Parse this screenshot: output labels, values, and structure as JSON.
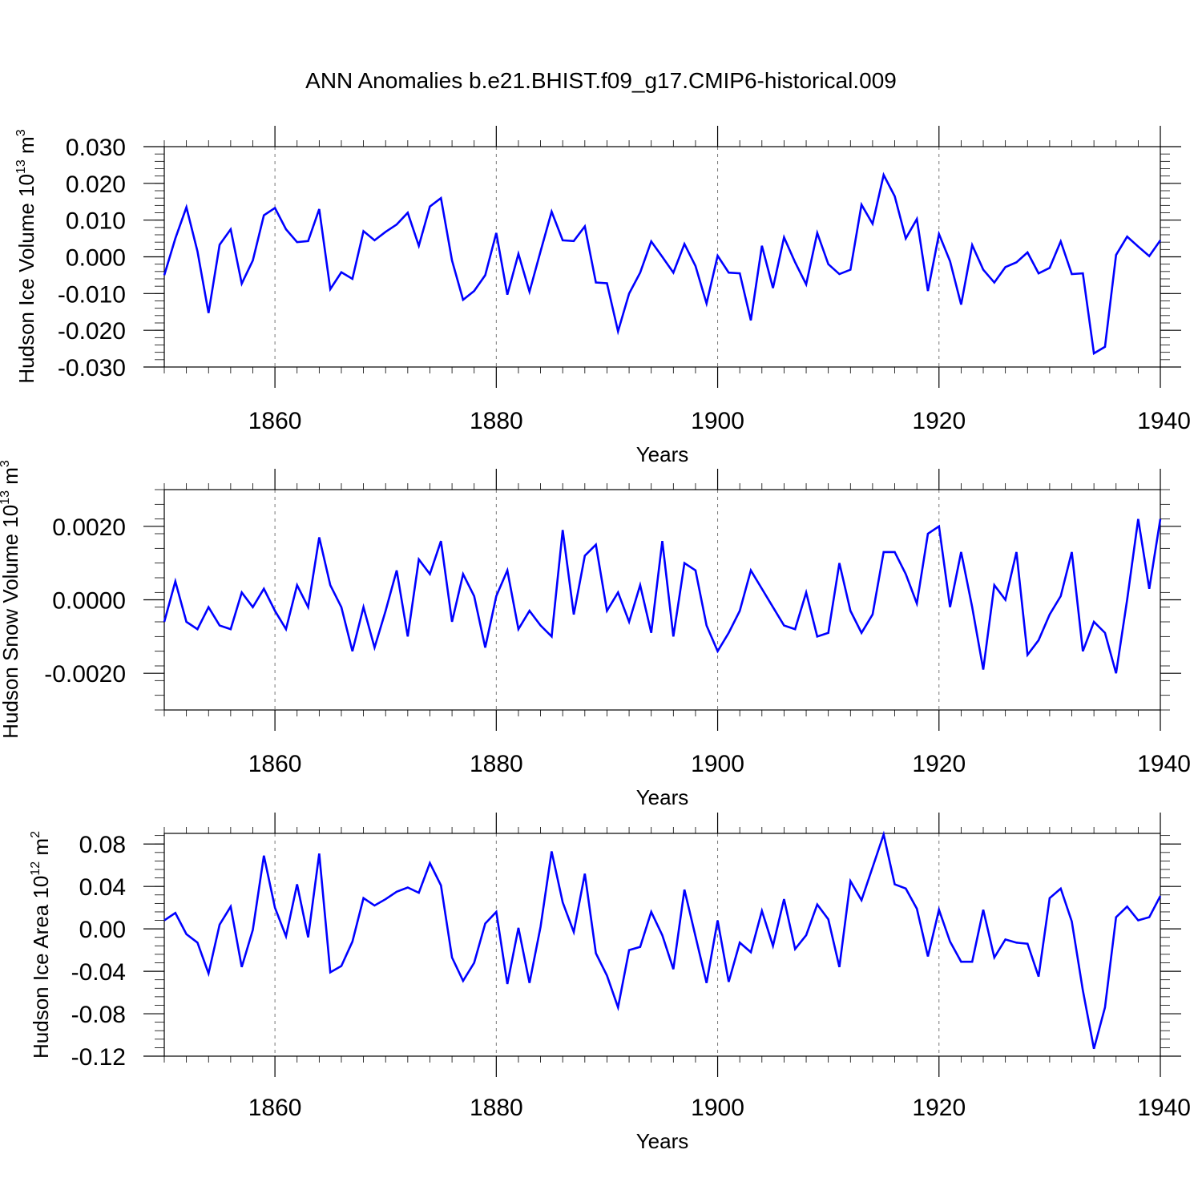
{
  "title": "ANN Anomalies b.e21.BHIST.f09_g17.CMIP6-historical.009",
  "line_color": "#0000ff",
  "chart_data": [
    {
      "type": "line",
      "title": "ANN Anomalies b.e21.BHIST.f09_g17.CMIP6-historical.009",
      "ylabel_main": "Hudson Ice Volume 10",
      "ylabel_exp": "13",
      "ylabel_unit": " m",
      "ylabel_unit_exp": "3",
      "xlabel": "Years",
      "xlim": [
        1850,
        1940
      ],
      "ylim": [
        -0.03,
        0.03
      ],
      "x_ticks": [
        1860,
        1880,
        1900,
        1920,
        1940
      ],
      "x_tick_labels": [
        "1860",
        "1880",
        "1900",
        "1920",
        "1940"
      ],
      "y_ticks": [
        0.03,
        0.02,
        0.01,
        0.0,
        -0.01,
        -0.02,
        -0.03
      ],
      "y_tick_labels": [
        "0.030",
        "0.020",
        "0.010",
        "0.000",
        "-0.010",
        "-0.020",
        "-0.030"
      ],
      "x_start": 1850,
      "series": [
        {
          "name": "Hudson Ice Volume anomaly",
          "values": [
            -0.005,
            0.005,
            0.0135,
            0.0015,
            -0.0153,
            0.0033,
            0.0075,
            -0.0073,
            -0.001,
            0.0113,
            0.0133,
            0.0075,
            0.004,
            0.0043,
            0.013,
            -0.0088,
            -0.0042,
            -0.006,
            0.007,
            0.0045,
            0.0068,
            0.0088,
            0.012,
            0.003,
            0.0137,
            0.016,
            -0.001,
            -0.0117,
            -0.0093,
            -0.005,
            0.0065,
            -0.0103,
            0.0008,
            -0.0095,
            0.0015,
            0.0123,
            0.0045,
            0.0043,
            0.0083,
            -0.007,
            -0.0072,
            -0.0203,
            -0.01,
            -0.0043,
            0.0042,
            0.0,
            -0.0043,
            0.0035,
            -0.0025,
            -0.0127,
            0.0003,
            -0.0043,
            -0.0045,
            -0.0173,
            0.003,
            -0.0085,
            0.0053,
            -0.0015,
            -0.0075,
            0.0065,
            -0.002,
            -0.0047,
            -0.0035,
            0.0142,
            0.009,
            0.0223,
            0.0165,
            0.005,
            0.0103,
            -0.0093,
            0.0062,
            -0.0012,
            -0.013,
            0.0032,
            -0.0035,
            -0.007,
            -0.0028,
            -0.0015,
            0.0012,
            -0.0045,
            -0.003,
            0.0042,
            -0.0047,
            -0.0045,
            -0.0263,
            -0.0245,
            0.0005,
            0.0055,
            0.0028,
            0.0002,
            0.0045
          ]
        }
      ]
    },
    {
      "type": "line",
      "ylabel_main": "Hudson Snow Volume 10",
      "ylabel_exp": "13",
      "ylabel_unit": " m",
      "ylabel_unit_exp": "3",
      "xlabel": "Years",
      "xlim": [
        1850,
        1940
      ],
      "ylim": [
        -0.003,
        0.003
      ],
      "x_ticks": [
        1860,
        1880,
        1900,
        1920,
        1940
      ],
      "x_tick_labels": [
        "1860",
        "1880",
        "1900",
        "1920",
        "1940"
      ],
      "y_ticks": [
        0.002,
        0.0,
        -0.002
      ],
      "y_tick_labels": [
        "0.0020",
        "0.0000",
        "-0.0020"
      ],
      "x_start": 1850,
      "series": [
        {
          "name": "Hudson Snow Volume anomaly",
          "values": [
            -0.0006,
            0.0005,
            -0.0006,
            -0.0008,
            -0.0002,
            -0.0007,
            -0.0008,
            0.0002,
            -0.0002,
            0.0003,
            -0.0003,
            -0.0008,
            0.0004,
            -0.0002,
            0.0017,
            0.0004,
            -0.0002,
            -0.0014,
            -0.0002,
            -0.0013,
            -0.0003,
            0.0008,
            -0.001,
            0.0011,
            0.0007,
            0.0016,
            -0.0006,
            0.0007,
            0.0001,
            -0.0013,
            0.0001,
            0.0008,
            -0.0008,
            -0.0003,
            -0.0007,
            -0.001,
            0.0019,
            -0.0004,
            0.0012,
            0.0015,
            -0.0003,
            0.0002,
            -0.0006,
            0.0004,
            -0.0009,
            0.0016,
            -0.001,
            0.001,
            0.0008,
            -0.0007,
            -0.0014,
            -0.0009,
            -0.0003,
            0.0008,
            0.0003,
            -0.0002,
            -0.0007,
            -0.0008,
            0.0002,
            -0.001,
            -0.0009,
            0.001,
            -0.0003,
            -0.0009,
            -0.0004,
            0.0013,
            0.0013,
            0.0007,
            -0.0001,
            0.0018,
            0.002,
            -0.0002,
            0.0013,
            -0.0002,
            -0.0019,
            0.0004,
            0.0,
            0.0013,
            -0.0015,
            -0.0011,
            -0.0004,
            0.0001,
            0.0013,
            -0.0014,
            -0.0006,
            -0.0009,
            -0.002,
            0.0,
            0.0022,
            0.0003,
            0.0022
          ]
        }
      ]
    },
    {
      "type": "line",
      "ylabel_main": "Hudson Ice Area 10",
      "ylabel_exp": "12",
      "ylabel_unit": " m",
      "ylabel_unit_exp": "2",
      "xlabel": "Years",
      "xlim": [
        1850,
        1940
      ],
      "ylim": [
        -0.12,
        0.09
      ],
      "x_ticks": [
        1860,
        1880,
        1900,
        1920,
        1940
      ],
      "x_tick_labels": [
        "1860",
        "1880",
        "1900",
        "1920",
        "1940"
      ],
      "y_ticks": [
        0.08,
        0.04,
        0.0,
        -0.04,
        -0.08,
        -0.12
      ],
      "y_tick_labels": [
        "0.08",
        "0.04",
        "0.00",
        "-0.04",
        "-0.08",
        "-0.12"
      ],
      "x_start": 1850,
      "series": [
        {
          "name": "Hudson Ice Area anomaly",
          "values": [
            0.008,
            0.015,
            -0.005,
            -0.013,
            -0.042,
            0.004,
            0.021,
            -0.036,
            -0.001,
            0.069,
            0.02,
            -0.007,
            0.042,
            -0.008,
            0.071,
            -0.041,
            -0.035,
            -0.012,
            0.029,
            0.022,
            0.028,
            0.035,
            0.039,
            0.034,
            0.062,
            0.041,
            -0.027,
            -0.049,
            -0.032,
            0.005,
            0.016,
            -0.052,
            0.001,
            -0.051,
            0.002,
            0.073,
            0.025,
            -0.003,
            0.052,
            -0.023,
            -0.044,
            -0.074,
            -0.02,
            -0.017,
            0.016,
            -0.006,
            -0.038,
            0.037,
            -0.007,
            -0.051,
            0.008,
            -0.05,
            -0.013,
            -0.022,
            0.017,
            -0.016,
            0.028,
            -0.019,
            -0.006,
            0.023,
            0.009,
            -0.036,
            0.045,
            0.027,
            0.058,
            0.089,
            0.042,
            0.038,
            0.019,
            -0.026,
            0.018,
            -0.012,
            -0.031,
            -0.031,
            0.018,
            -0.027,
            -0.01,
            -0.013,
            -0.014,
            -0.045,
            0.029,
            0.038,
            0.007,
            -0.058,
            -0.113,
            -0.074,
            0.011,
            0.021,
            0.008,
            0.011,
            0.031
          ]
        }
      ]
    }
  ]
}
